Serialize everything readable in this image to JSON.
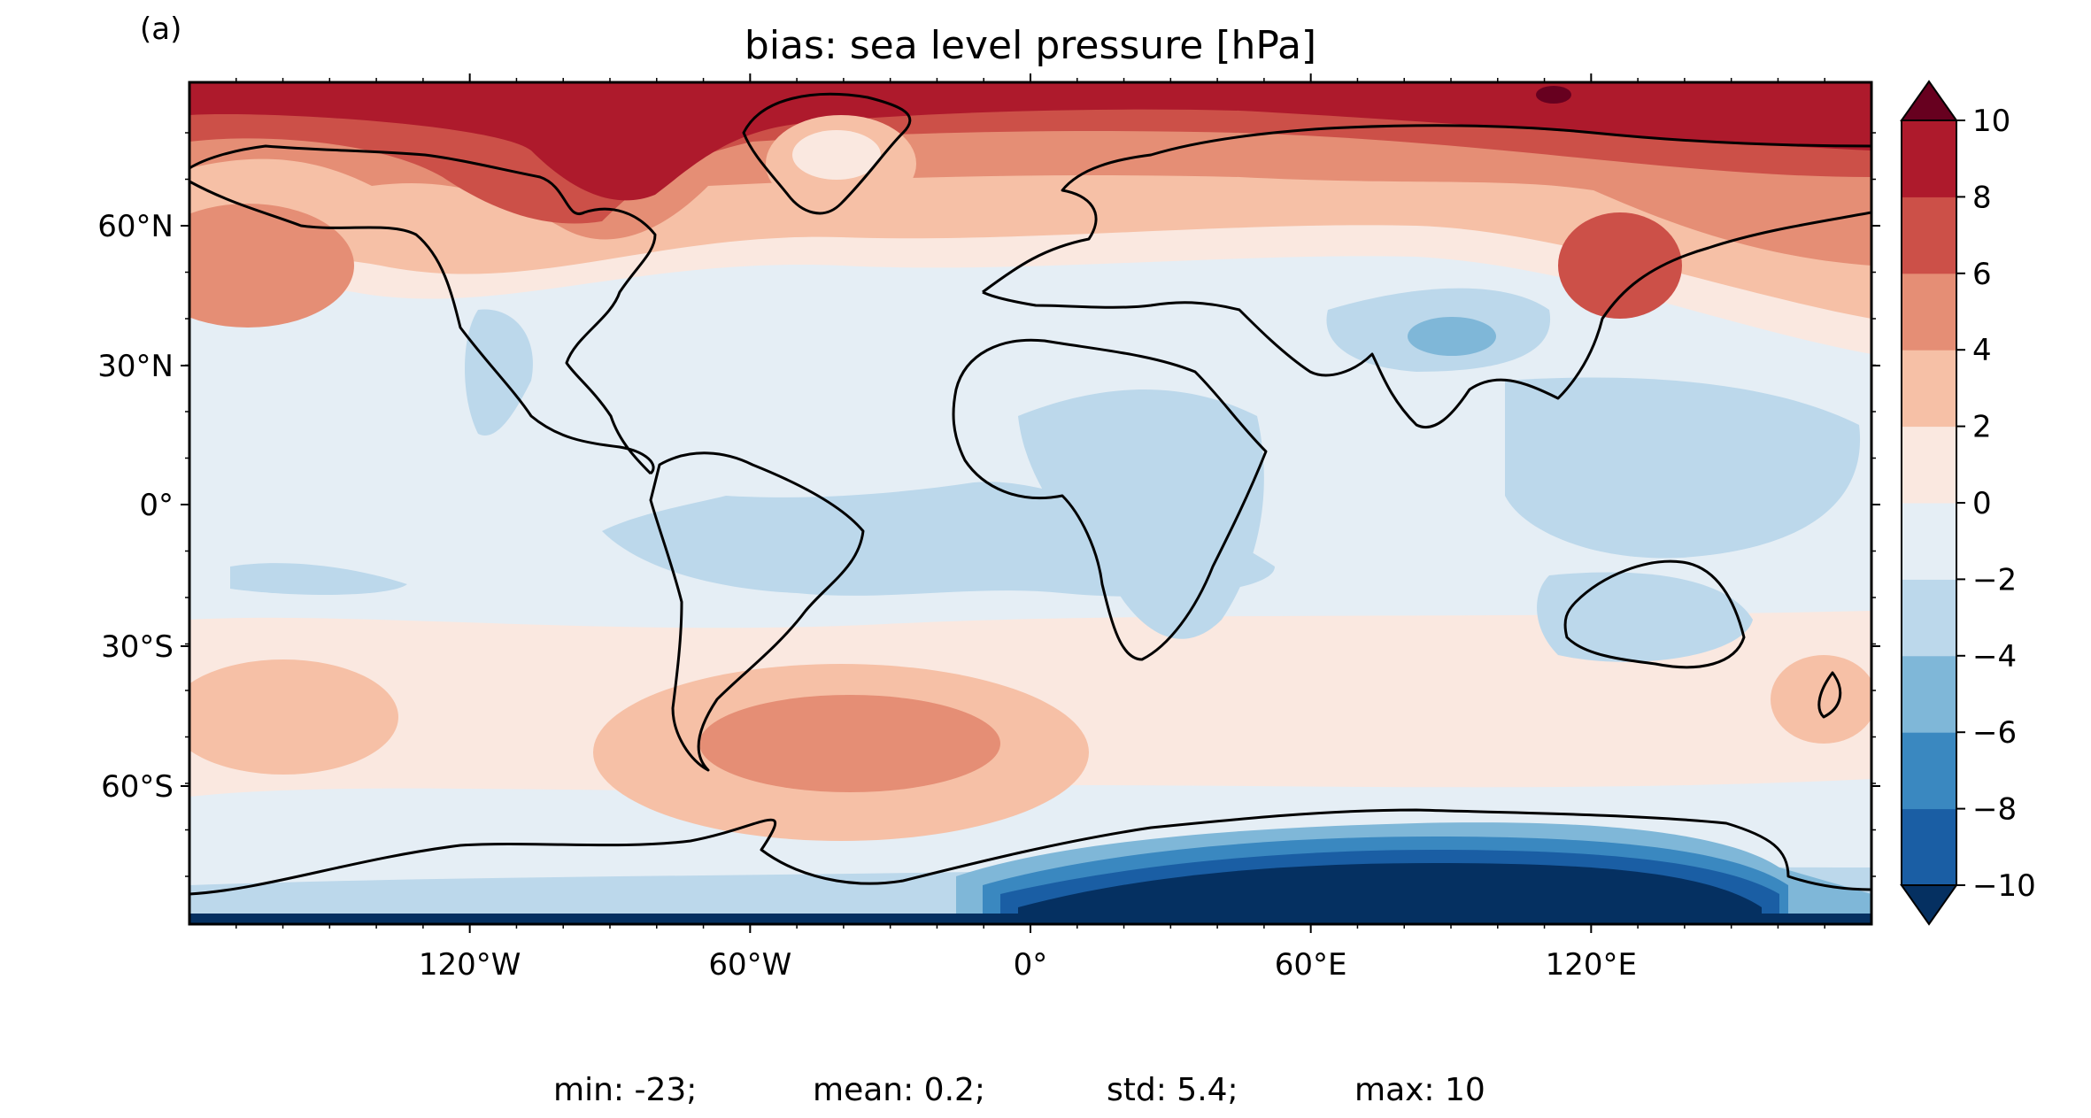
{
  "panel_label": "(a)",
  "title": "bias: sea level pressure [hPa]",
  "lat_ticks": [
    "60°N",
    "30°N",
    "0°",
    "30°S",
    "60°S"
  ],
  "lon_ticks": [
    "120°W",
    "60°W",
    "0°",
    "60°E",
    "120°E"
  ],
  "colorbar": {
    "levels": [
      -10,
      -8,
      -6,
      -4,
      -2,
      0,
      2,
      4,
      6,
      8,
      10
    ],
    "tick_labels": [
      "10",
      "8",
      "6",
      "4",
      "2",
      "0",
      "−2",
      "−4",
      "−6",
      "−8",
      "−10"
    ],
    "colors": [
      "#053061",
      "#1a5ea4",
      "#3a88c0",
      "#7fb7d8",
      "#bcd8eb",
      "#e5eef5",
      "#fae8e0",
      "#f6c0a6",
      "#e58e75",
      "#cc5048",
      "#ae1a2c",
      "#67001f"
    ],
    "extend": "both"
  },
  "stats": {
    "min": "min: -23;",
    "mean": "mean: 0.2;",
    "std": "std: 5.4;",
    "max": "max: 10"
  }
}
